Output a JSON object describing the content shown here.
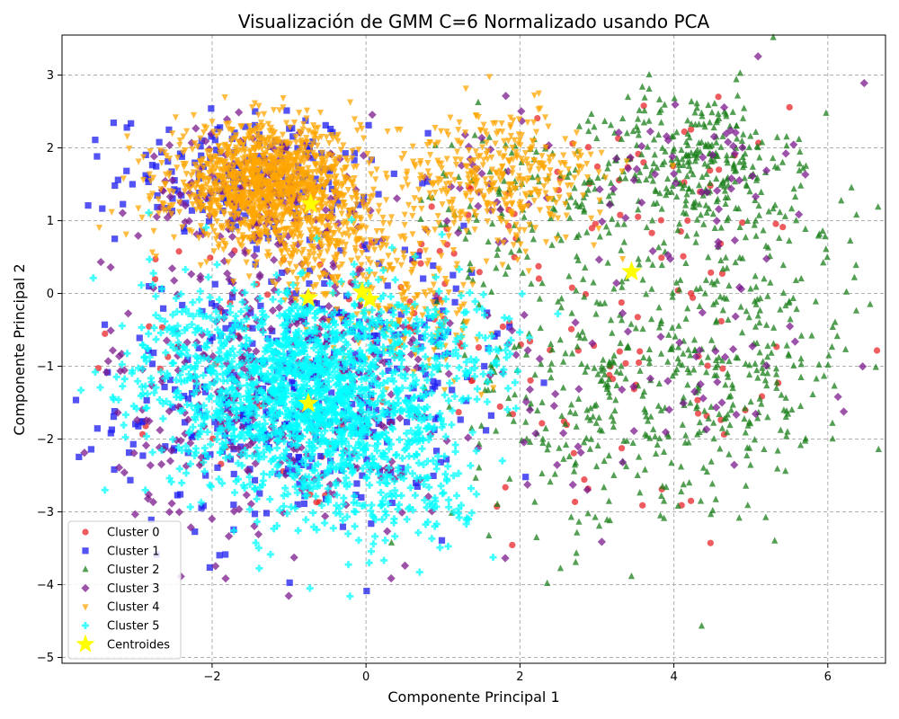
{
  "chart_data": {
    "type": "scatter",
    "title": "Visualización de GMM C=6 Normalizado usando PCA",
    "xlabel": "Componente Principal 1",
    "ylabel": "Componente Principal 2",
    "xlim": [
      -3.95,
      6.75
    ],
    "ylim": [
      -5.08,
      3.55
    ],
    "xticks": [
      -2,
      0,
      2,
      4,
      6
    ],
    "yticks": [
      -5,
      -4,
      -3,
      -2,
      -1,
      0,
      1,
      2,
      3
    ],
    "grid": true,
    "legend_position": "lower-left",
    "series": [
      {
        "name": "Cluster 0",
        "color": "#e8252a",
        "marker": "circle",
        "regions": [
          {
            "cx": -1.0,
            "cy": -1.0,
            "sx": 1.3,
            "sy": 1.1,
            "n": 70
          },
          {
            "cx": 0.8,
            "cy": 0.2,
            "sx": 0.8,
            "sy": 0.8,
            "n": 30
          },
          {
            "cx": 3.4,
            "cy": -1.0,
            "sx": 1.4,
            "sy": 1.4,
            "n": 70
          },
          {
            "cx": 4.2,
            "cy": 1.8,
            "sx": 0.8,
            "sy": 0.6,
            "n": 25
          },
          {
            "cx": 2.4,
            "cy": 1.3,
            "sx": 0.7,
            "sy": 0.5,
            "n": 15
          }
        ]
      },
      {
        "name": "Cluster 1",
        "color": "#1b1bf2",
        "marker": "square",
        "regions": [
          {
            "cx": -1.0,
            "cy": -1.5,
            "sx": 1.1,
            "sy": 0.9,
            "n": 320
          },
          {
            "cx": -1.6,
            "cy": 1.6,
            "sx": 0.8,
            "sy": 0.45,
            "n": 180
          },
          {
            "cx": 0.6,
            "cy": -0.6,
            "sx": 0.9,
            "sy": 0.7,
            "n": 50
          }
        ]
      },
      {
        "name": "Cluster 2",
        "color": "#1a7f1a",
        "marker": "triangle-up",
        "regions": [
          {
            "cx": 4.3,
            "cy": 1.8,
            "sx": 0.6,
            "sy": 0.5,
            "n": 280
          },
          {
            "cx": 4.6,
            "cy": -1.0,
            "sx": 0.9,
            "sy": 0.9,
            "n": 320
          },
          {
            "cx": 2.7,
            "cy": -1.4,
            "sx": 0.8,
            "sy": 1.1,
            "n": 190
          },
          {
            "cx": 2.2,
            "cy": 1.2,
            "sx": 0.8,
            "sy": 0.6,
            "n": 130
          },
          {
            "cx": 5.6,
            "cy": 0.8,
            "sx": 0.6,
            "sy": 0.7,
            "n": 50
          }
        ]
      },
      {
        "name": "Cluster 3",
        "color": "#7b1a8c",
        "marker": "diamond",
        "regions": [
          {
            "cx": -1.1,
            "cy": -1.4,
            "sx": 1.1,
            "sy": 0.95,
            "n": 380
          },
          {
            "cx": -1.3,
            "cy": 1.3,
            "sx": 0.8,
            "sy": 0.5,
            "n": 160
          },
          {
            "cx": 4.3,
            "cy": 1.8,
            "sx": 0.6,
            "sy": 0.5,
            "n": 50
          },
          {
            "cx": 4.4,
            "cy": -0.9,
            "sx": 0.9,
            "sy": 0.9,
            "n": 45
          },
          {
            "cx": 2.3,
            "cy": -1.8,
            "sx": 0.7,
            "sy": 1.0,
            "n": 25
          },
          {
            "cx": 1.6,
            "cy": 1.5,
            "sx": 0.7,
            "sy": 0.6,
            "n": 30
          }
        ]
      },
      {
        "name": "Cluster 4",
        "color": "#ffa500",
        "marker": "triangle-down",
        "regions": [
          {
            "cx": -1.3,
            "cy": 1.5,
            "sx": 0.6,
            "sy": 0.4,
            "n": 1300
          },
          {
            "cx": -0.4,
            "cy": 0.6,
            "sx": 0.5,
            "sy": 0.35,
            "n": 220
          },
          {
            "cx": 1.7,
            "cy": 1.6,
            "sx": 0.7,
            "sy": 0.45,
            "n": 380
          },
          {
            "cx": 0.7,
            "cy": -0.2,
            "sx": 0.5,
            "sy": 0.4,
            "n": 120
          }
        ]
      },
      {
        "name": "Cluster 5",
        "color": "#00ffff",
        "marker": "plus",
        "regions": [
          {
            "cx": -0.8,
            "cy": -1.3,
            "sx": 0.85,
            "sy": 0.7,
            "n": 1400
          },
          {
            "cx": 0.3,
            "cy": -2.5,
            "sx": 0.7,
            "sy": 0.6,
            "n": 250
          },
          {
            "cx": 1.2,
            "cy": -0.7,
            "sx": 0.5,
            "sy": 0.4,
            "n": 100
          },
          {
            "cx": -2.4,
            "cy": -1.2,
            "sx": 0.5,
            "sy": 0.8,
            "n": 120
          }
        ]
      }
    ],
    "centroids": {
      "name": "Centroides",
      "color": "#ffff00",
      "points": [
        {
          "x": -0.72,
          "y": 1.23
        },
        {
          "x": -0.75,
          "y": -0.06
        },
        {
          "x": -0.05,
          "y": 0.02
        },
        {
          "x": 0.05,
          "y": -0.08
        },
        {
          "x": 3.45,
          "y": 0.3
        },
        {
          "x": -0.75,
          "y": -1.51
        }
      ]
    }
  }
}
